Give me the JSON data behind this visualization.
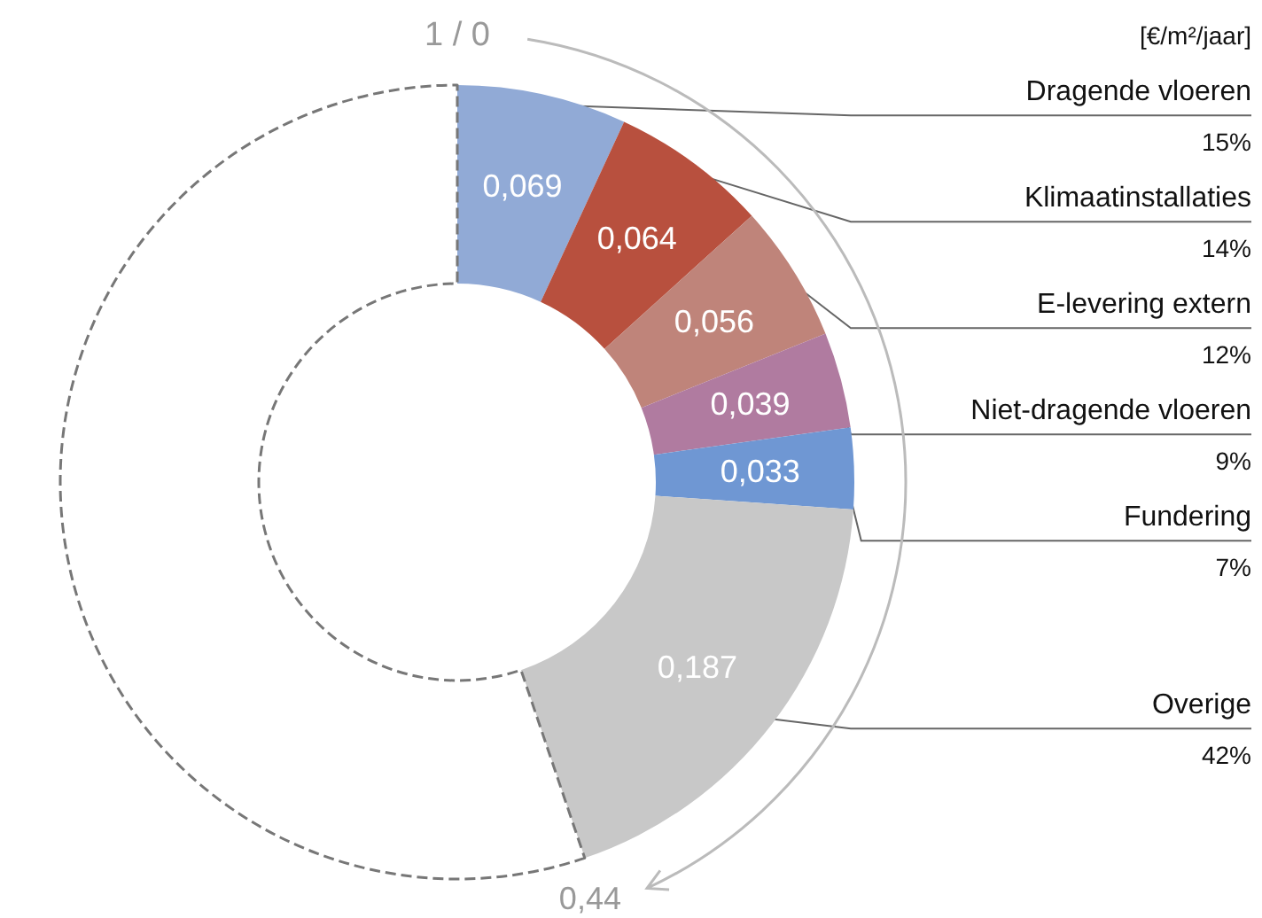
{
  "chart_data": {
    "type": "donut",
    "categories": [
      "Dragende vloeren",
      "Klimaatinstallaties",
      "E-levering extern",
      "Niet-dragende vloeren",
      "Fundering",
      "Overige",
      null
    ],
    "values": [
      0.069,
      0.064,
      0.056,
      0.039,
      0.033,
      0.187,
      0.552
    ],
    "value_labels": [
      "0,069",
      "0,064",
      "0,056",
      "0,039",
      "0,033",
      "0,187",
      null
    ],
    "colors": [
      "#91aad6",
      "#b8503e",
      "#bf847a",
      "#b07ba0",
      "#6f97d3",
      "#c8c8c8",
      "#ffffff"
    ],
    "annotations": [
      "[€/m²/jaar]",
      "1 / 0",
      "0,44",
      {
        "text": "15%",
        "x": "Dragende vloeren"
      },
      {
        "text": "14%",
        "x": "Klimaatinstallaties"
      },
      {
        "text": "12%",
        "x": "E-levering extern"
      },
      {
        "text": "9%",
        "x": "Niet-dragende vloeren"
      },
      {
        "text": "7%",
        "x": "Fundering"
      },
      {
        "text": "42%",
        "x": "Overige"
      }
    ]
  }
}
